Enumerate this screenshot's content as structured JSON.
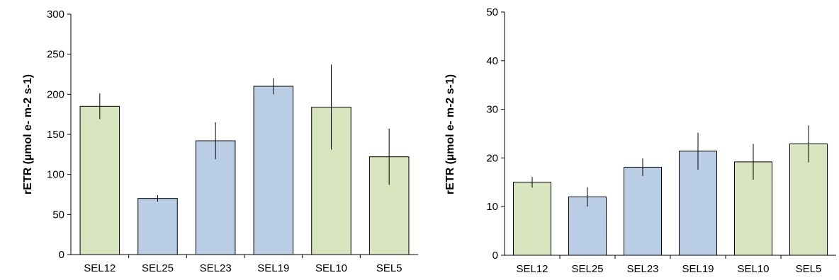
{
  "colors": {
    "green": "#d7e4bd",
    "blue": "#b9cde5",
    "stroke": "#000000"
  },
  "chart_data": [
    {
      "type": "bar",
      "ylabel": "rETR (µmol e- m-2 s-1)",
      "ylim": [
        0,
        300
      ],
      "yticks": [
        0,
        50,
        100,
        150,
        200,
        250,
        300
      ],
      "categories": [
        "SEL12",
        "SEL25",
        "SEL23",
        "SEL19",
        "SEL10",
        "SEL5"
      ],
      "values": [
        185,
        70,
        142,
        210,
        184,
        122
      ],
      "errors": [
        16,
        4,
        23,
        10,
        53,
        35
      ],
      "bar_colors": [
        "green",
        "blue",
        "blue",
        "blue",
        "green",
        "green"
      ],
      "grid": false
    },
    {
      "type": "bar",
      "ylabel": "rETR (µmol e- m-2 s-1)",
      "ylim": [
        0,
        50
      ],
      "yticks": [
        0,
        10,
        20,
        30,
        40,
        50
      ],
      "categories": [
        "SEL12",
        "SEL25",
        "SEL23",
        "SEL19",
        "SEL10",
        "SEL5"
      ],
      "values": [
        15,
        12,
        18.1,
        21.4,
        19.2,
        22.9
      ],
      "errors": [
        1.1,
        2,
        1.8,
        3.8,
        3.7,
        3.8
      ],
      "bar_colors": [
        "green",
        "blue",
        "blue",
        "blue",
        "green",
        "green"
      ],
      "grid": false
    }
  ]
}
